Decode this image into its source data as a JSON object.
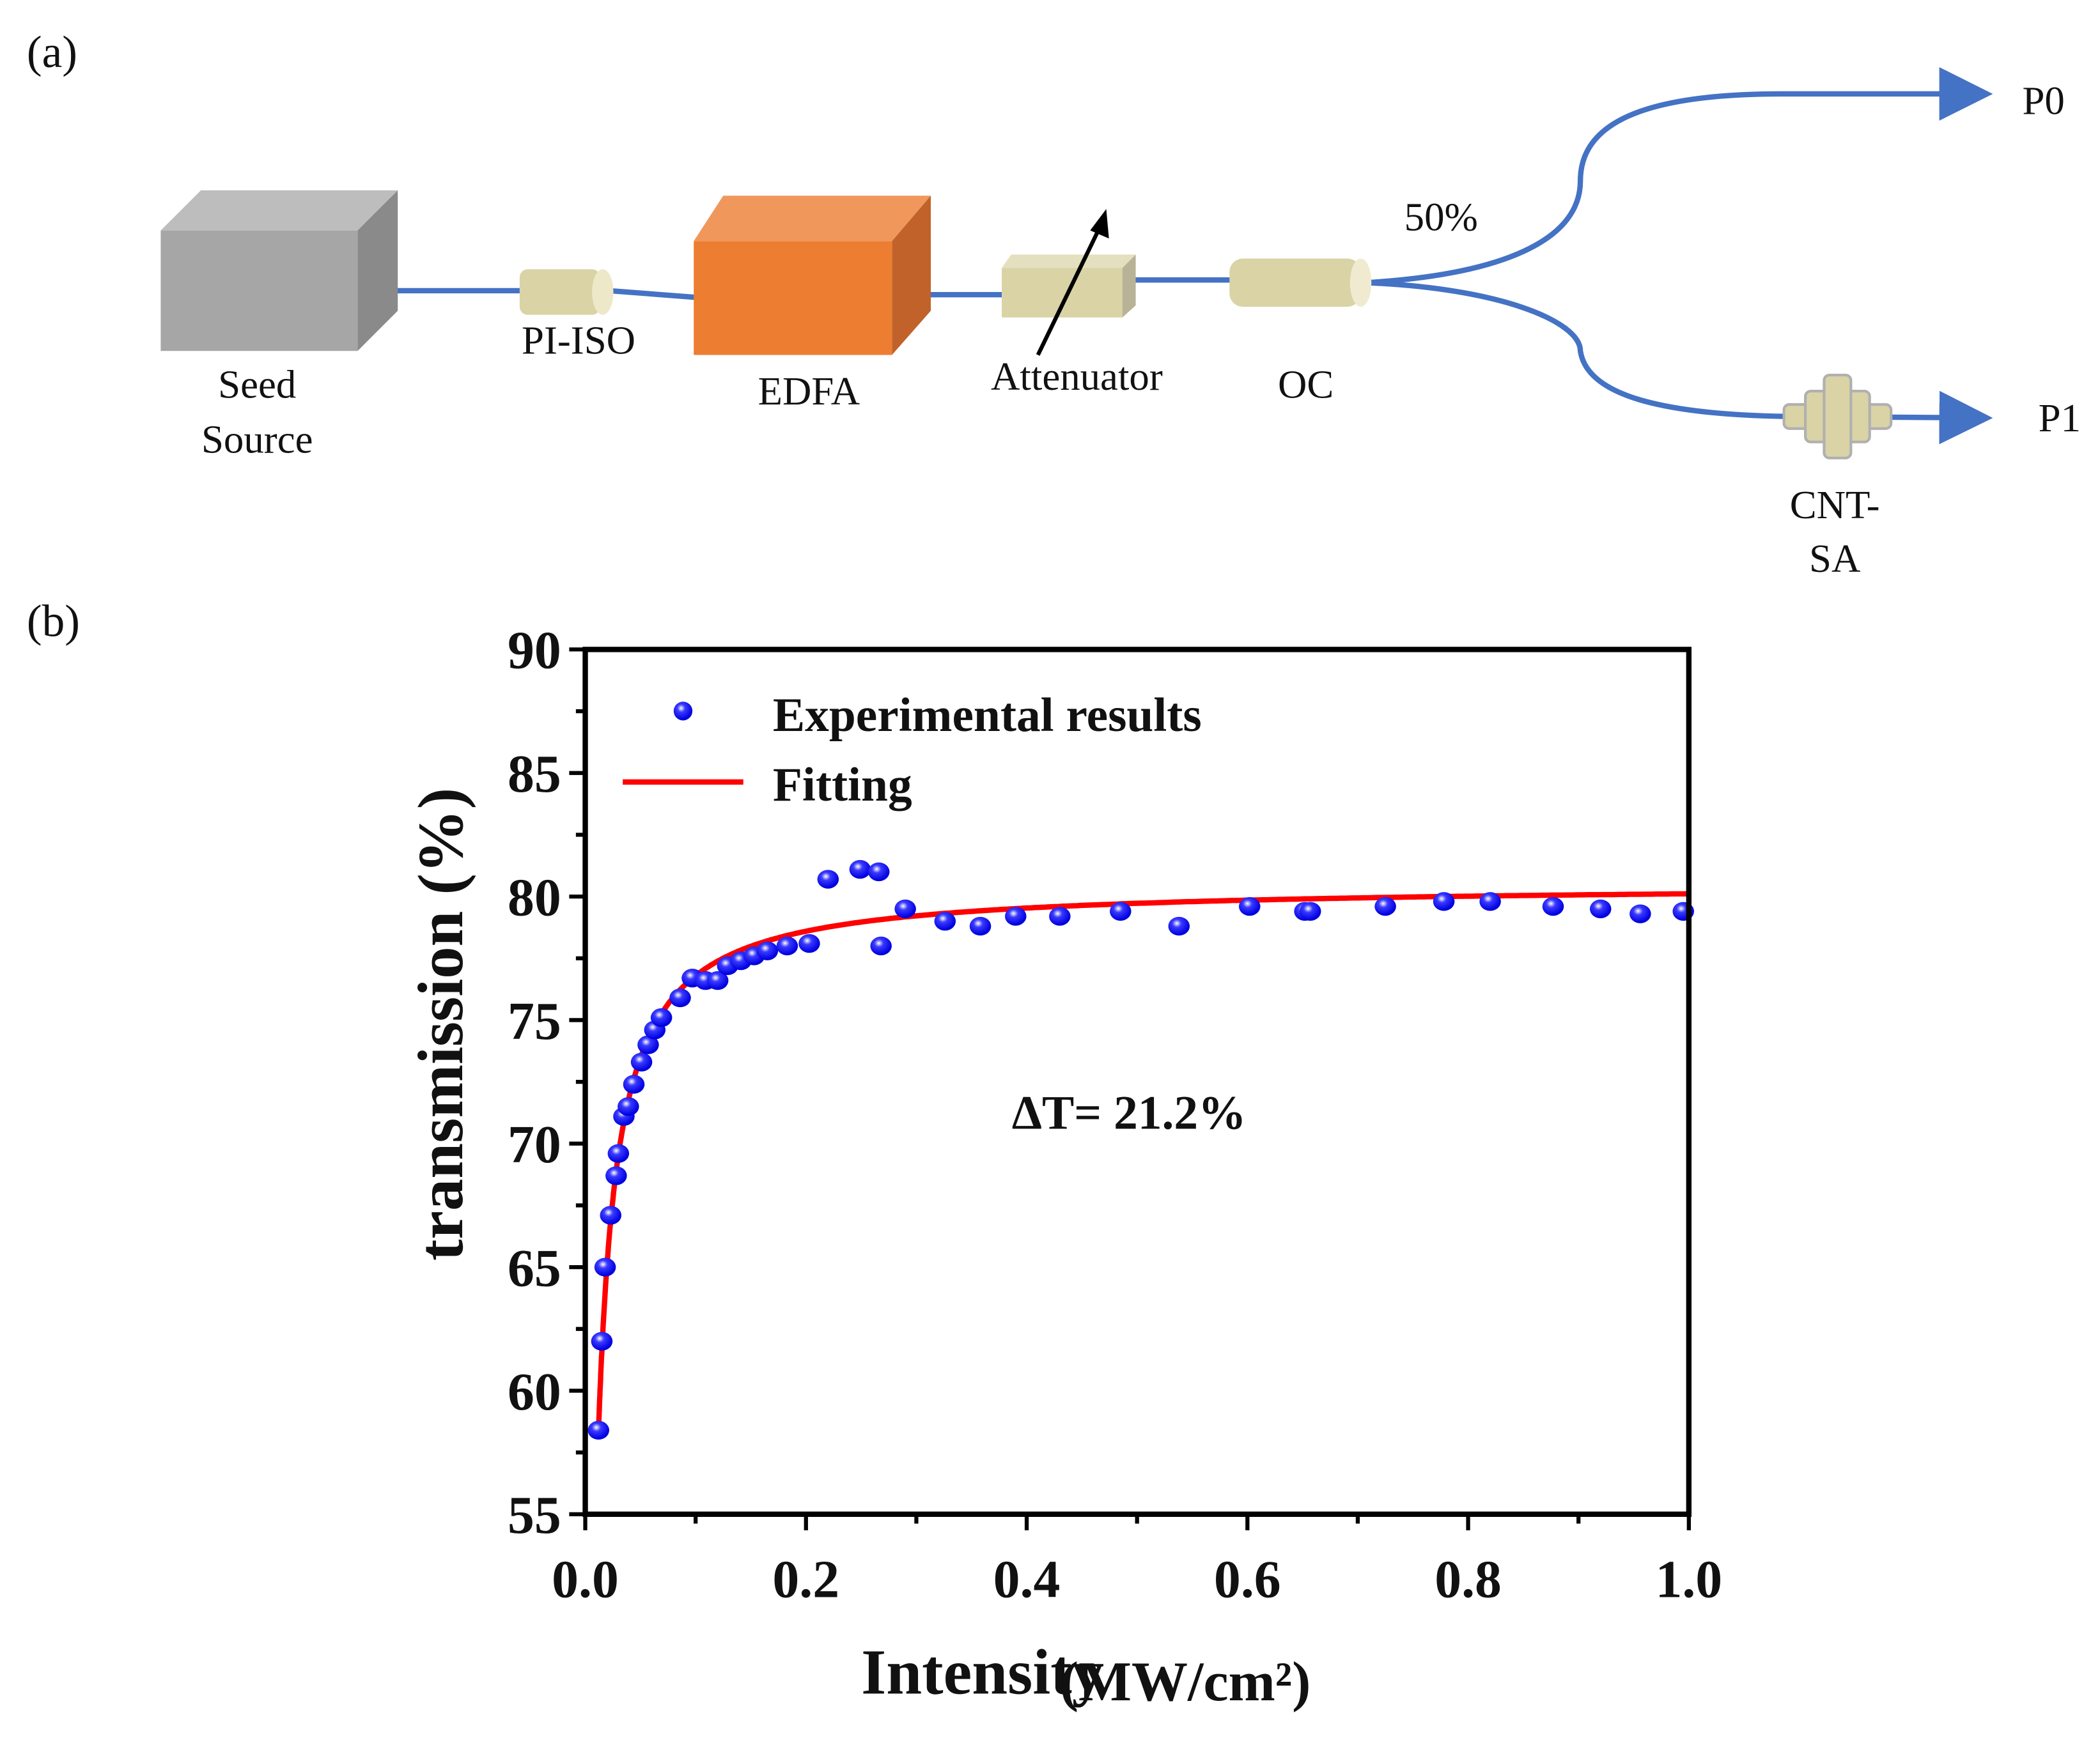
{
  "panel_a": {
    "label": "(a)",
    "components": {
      "seed_source": [
        "Seed",
        "Source"
      ],
      "isolator": "PI-ISO",
      "edfa": "EDFA",
      "attenuator": "Attenuator",
      "coupler": "OC",
      "split_ratio": "50%",
      "sa": [
        "CNT-",
        "SA"
      ],
      "out0": "P0",
      "out1": "P1"
    },
    "colors": {
      "fiber": "#4472c4",
      "edfa": "#ed7d31",
      "seed": "#a6a6a6",
      "passive": "#d9d3a6"
    }
  },
  "panel_b": {
    "label": "(b)"
  },
  "chart_data": {
    "type": "scatter",
    "xlabel": "Intensity",
    "xlabel_unit": "(MW/cm²)",
    "ylabel": "transmission (%)",
    "xlim": [
      0,
      1.0
    ],
    "ylim": [
      55,
      90
    ],
    "xticks": [
      "0.0",
      "0.2",
      "0.4",
      "0.6",
      "0.8",
      "1.0"
    ],
    "yticks": [
      "55",
      "60",
      "65",
      "70",
      "75",
      "80",
      "85",
      "90"
    ],
    "legend_position": "top-left",
    "annotation": "ΔT= 21.2%",
    "series": [
      {
        "name": "Experimental results",
        "color": "#0000ff",
        "x": [
          0.012,
          0.015,
          0.018,
          0.023,
          0.028,
          0.03,
          0.035,
          0.039,
          0.044,
          0.051,
          0.057,
          0.063,
          0.069,
          0.086,
          0.097,
          0.109,
          0.12,
          0.129,
          0.141,
          0.153,
          0.165,
          0.183,
          0.203,
          0.22,
          0.249,
          0.266,
          0.268,
          0.29,
          0.326,
          0.358,
          0.39,
          0.43,
          0.485,
          0.538,
          0.602,
          0.652,
          0.657,
          0.725,
          0.778,
          0.82,
          0.877,
          0.92,
          0.956,
          0.995
        ],
        "y": [
          58.4,
          62.0,
          65.0,
          67.1,
          68.7,
          69.6,
          71.1,
          71.5,
          72.4,
          73.3,
          74.0,
          74.6,
          75.1,
          75.9,
          76.7,
          76.6,
          76.6,
          77.2,
          77.4,
          77.6,
          77.8,
          78.0,
          78.1,
          80.7,
          81.1,
          81.0,
          78.0,
          79.5,
          79.0,
          78.8,
          79.2,
          79.2,
          79.4,
          78.8,
          79.6,
          79.4,
          79.4,
          79.6,
          79.8,
          79.8,
          79.6,
          79.5,
          79.3,
          79.4
        ]
      },
      {
        "name": "Fitting",
        "color": "#ff0000",
        "model": {
          "T_max": 80.5,
          "A": 68.7,
          "I_sat": 0.0057,
          "x_start": 0.012,
          "x_end": 1.0
        }
      }
    ]
  }
}
